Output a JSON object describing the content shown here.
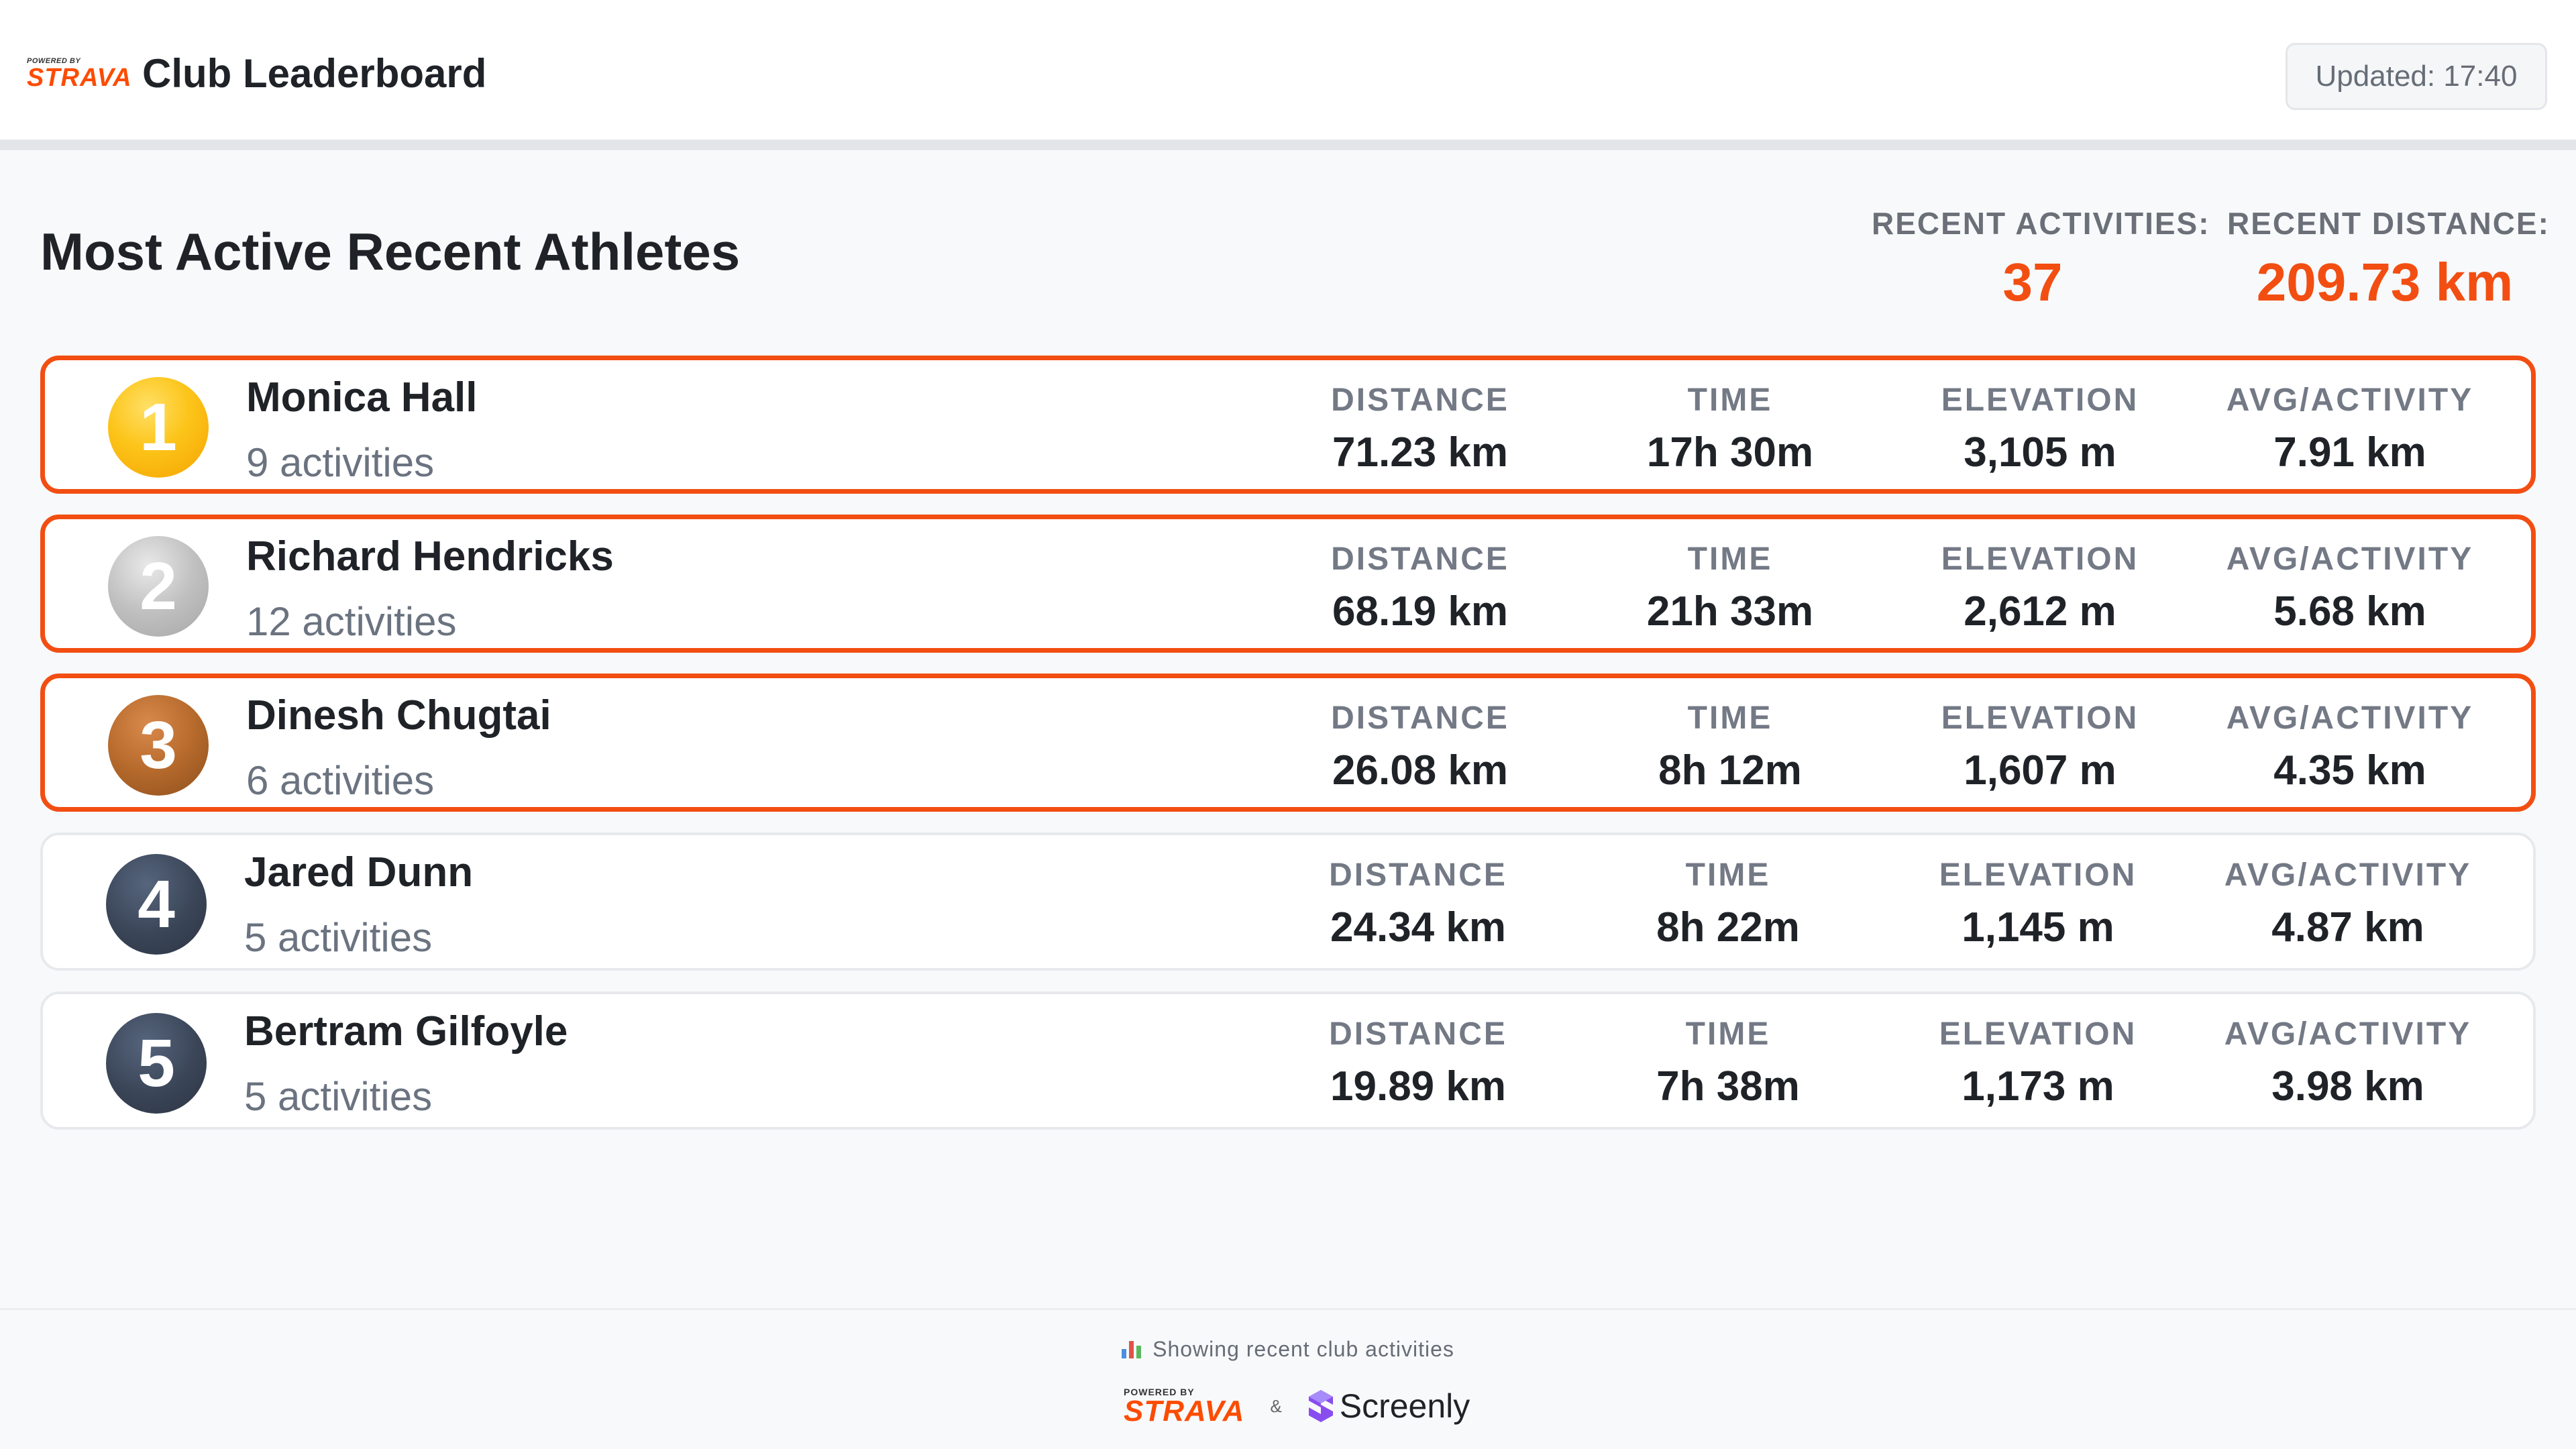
{
  "header": {
    "logo_powered_by": "POWERED BY",
    "logo_word": "STRAVA",
    "title": "Club Leaderboard",
    "updated": "Updated: 17:40"
  },
  "summary": {
    "title": "Most Active Recent Athletes",
    "activities_label": "RECENT ACTIVITIES:",
    "activities_value": "37",
    "distance_label": "RECENT DISTANCE:",
    "distance_value": "209.73 km"
  },
  "metric_labels": {
    "distance": "DISTANCE",
    "time": "TIME",
    "elevation": "ELEVATION",
    "avg": "AVG/ACTIVITY"
  },
  "athletes": [
    {
      "rank": "1",
      "medal": "gold",
      "name": "Monica Hall",
      "activities": "9 activities",
      "distance": "71.23 km",
      "time": "17h 30m",
      "elevation": "3,105 m",
      "avg": "7.91 km"
    },
    {
      "rank": "2",
      "medal": "silver",
      "name": "Richard Hendricks",
      "activities": "12 activities",
      "distance": "68.19 km",
      "time": "21h 33m",
      "elevation": "2,612 m",
      "avg": "5.68 km"
    },
    {
      "rank": "3",
      "medal": "bronze",
      "name": "Dinesh Chugtai",
      "activities": "6 activities",
      "distance": "26.08 km",
      "time": "8h 12m",
      "elevation": "1,607 m",
      "avg": "4.35 km"
    },
    {
      "rank": "4",
      "medal": "plain",
      "name": "Jared Dunn",
      "activities": "5 activities",
      "distance": "24.34 km",
      "time": "8h 22m",
      "elevation": "1,145 m",
      "avg": "4.87 km"
    },
    {
      "rank": "5",
      "medal": "plain",
      "name": "Bertram Gilfoyle",
      "activities": "5 activities",
      "distance": "19.89 km",
      "time": "7h 38m",
      "elevation": "1,173 m",
      "avg": "3.98 km"
    }
  ],
  "footer": {
    "icon": "bar-chart-icon",
    "note": "Showing recent club activities",
    "strava_powered_by": "POWERED BY",
    "strava_word": "STRAVA",
    "ampersand": "&",
    "screenly_word": "Screenly"
  },
  "colors": {
    "accent": "#f24e12",
    "strava_orange": "#fc4c02",
    "gold": "#fcc419",
    "silver": "#c0c0c0",
    "bronze": "#b66a2c",
    "dark_medal": "#3a4557",
    "screenly_purple": "#7c3aed"
  }
}
